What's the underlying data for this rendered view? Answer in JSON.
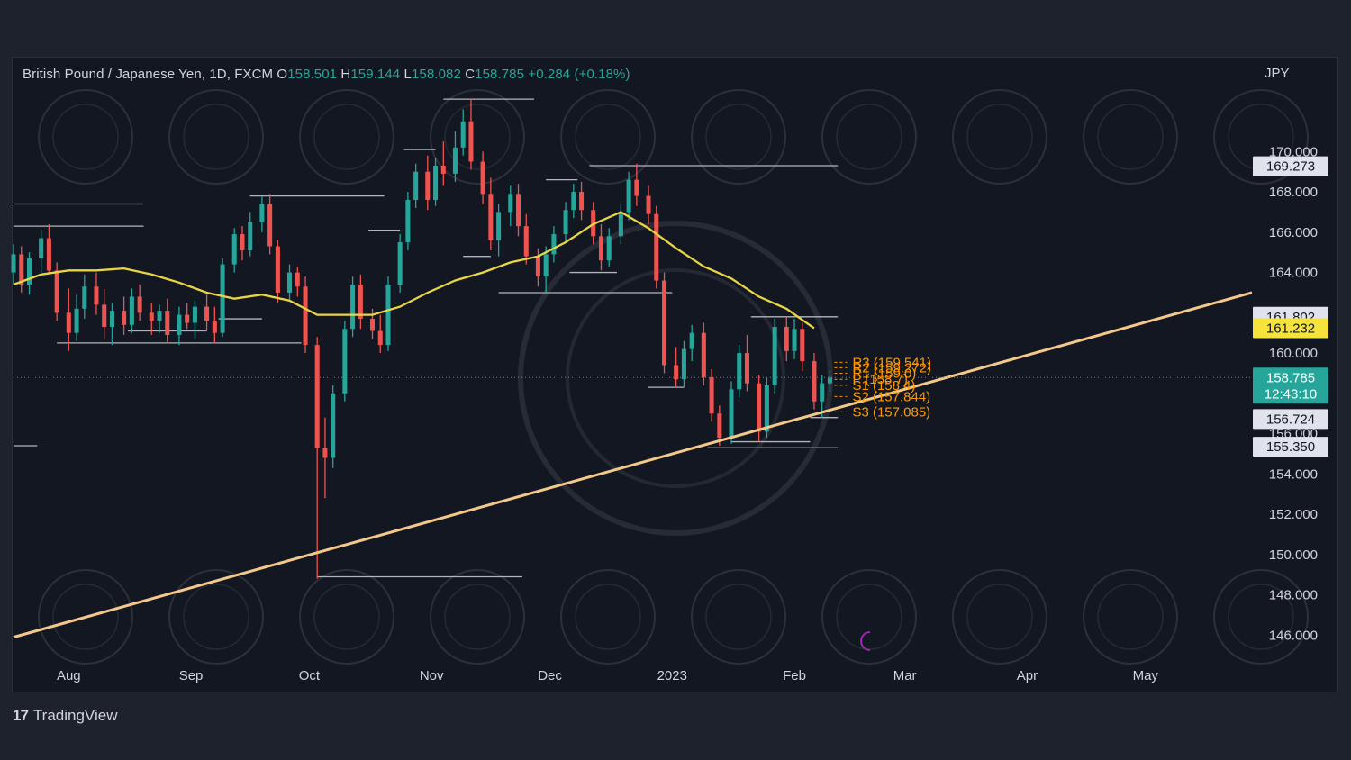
{
  "header": {
    "symbol": "British Pound / Japanese Yen, 1D, FXCM",
    "o_label": "O",
    "o_value": "158.501",
    "h_label": "H",
    "h_value": "159.144",
    "l_label": "L",
    "l_value": "158.082",
    "c_label": "C",
    "c_value": "158.785",
    "change": "+0.284 (+0.18%)"
  },
  "currency": "JPY",
  "brand": {
    "logo": "17",
    "name": "TradingView"
  },
  "colors": {
    "background": "#131722",
    "up": "#26a69a",
    "down": "#ef5350",
    "ma_line": "#e8d545",
    "trendline": "#f3c88a",
    "pivot_text": "#ff9800",
    "level_lines": "#b2b5be",
    "axis_text": "#d1d4dc"
  },
  "chart_data": {
    "type": "candlestick",
    "y_axis": {
      "ticks": [
        "146.000",
        "148.000",
        "150.000",
        "152.000",
        "154.000",
        "156.000",
        "158.000",
        "160.000",
        "162.000",
        "164.000",
        "166.000",
        "168.000",
        "170.000"
      ],
      "ylim": [
        144.9,
        173.5
      ]
    },
    "x_axis": {
      "ticks": [
        "Aug",
        "Sep",
        "Oct",
        "Nov",
        "Dec",
        "2023",
        "Feb",
        "Mar",
        "Apr",
        "May"
      ],
      "tick_dates": [
        "2022-08-01",
        "2022-09-01",
        "2022-10-01",
        "2022-11-01",
        "2022-12-01",
        "2023-01-01",
        "2023-02-01",
        "2023-03-01",
        "2023-04-01",
        "2023-05-01"
      ],
      "xlim": [
        "2022-07-18",
        "2023-05-28"
      ]
    },
    "price_labels": [
      {
        "text": "169.273",
        "value": 169.273,
        "style": "gray"
      },
      {
        "text": "161.802",
        "value": 161.802,
        "style": "gray"
      },
      {
        "text": "161.232",
        "value": 161.232,
        "style": "yellow"
      },
      {
        "text": "158.785",
        "value": 158.785,
        "style": "green",
        "sub": "12:43:10"
      },
      {
        "text": "156.724",
        "value": 156.724,
        "style": "gray"
      },
      {
        "text": "155.350",
        "value": 155.35,
        "style": "gray"
      }
    ],
    "last_price": 158.785,
    "moving_average": [
      [
        "2022-07-18",
        163.4
      ],
      [
        "2022-07-25",
        163.9
      ],
      [
        "2022-08-01",
        164.1
      ],
      [
        "2022-08-08",
        164.1
      ],
      [
        "2022-08-15",
        164.2
      ],
      [
        "2022-08-22",
        163.9
      ],
      [
        "2022-08-29",
        163.5
      ],
      [
        "2022-09-05",
        163.0
      ],
      [
        "2022-09-12",
        162.7
      ],
      [
        "2022-09-19",
        162.9
      ],
      [
        "2022-09-26",
        162.6
      ],
      [
        "2022-10-03",
        161.9
      ],
      [
        "2022-10-10",
        161.9
      ],
      [
        "2022-10-17",
        161.9
      ],
      [
        "2022-10-24",
        162.3
      ],
      [
        "2022-10-31",
        163.0
      ],
      [
        "2022-11-07",
        163.6
      ],
      [
        "2022-11-14",
        164.0
      ],
      [
        "2022-11-21",
        164.5
      ],
      [
        "2022-11-28",
        164.8
      ],
      [
        "2022-12-05",
        165.5
      ],
      [
        "2022-12-12",
        166.4
      ],
      [
        "2022-12-19",
        167.0
      ],
      [
        "2022-12-26",
        166.2
      ],
      [
        "2023-01-02",
        165.2
      ],
      [
        "2023-01-09",
        164.3
      ],
      [
        "2023-01-16",
        163.7
      ],
      [
        "2023-01-23",
        162.8
      ],
      [
        "2023-01-30",
        162.2
      ],
      [
        "2023-02-06",
        161.232
      ]
    ],
    "candles": [
      {
        "date": "2022-07-18",
        "o": 164.0,
        "h": 165.4,
        "l": 163.4,
        "c": 164.9
      },
      {
        "date": "2022-07-20",
        "o": 164.9,
        "h": 165.3,
        "l": 163.0,
        "c": 163.4
      },
      {
        "date": "2022-07-22",
        "o": 163.4,
        "h": 165.0,
        "l": 162.9,
        "c": 164.7
      },
      {
        "date": "2022-07-25",
        "o": 164.7,
        "h": 166.1,
        "l": 164.0,
        "c": 165.7
      },
      {
        "date": "2022-07-27",
        "o": 165.7,
        "h": 166.4,
        "l": 163.9,
        "c": 164.1
      },
      {
        "date": "2022-07-29",
        "o": 164.1,
        "h": 164.5,
        "l": 161.6,
        "c": 162.0
      },
      {
        "date": "2022-08-01",
        "o": 162.0,
        "h": 163.2,
        "l": 160.1,
        "c": 161.0
      },
      {
        "date": "2022-08-03",
        "o": 161.0,
        "h": 162.9,
        "l": 160.6,
        "c": 162.2
      },
      {
        "date": "2022-08-05",
        "o": 162.2,
        "h": 163.9,
        "l": 161.7,
        "c": 163.3
      },
      {
        "date": "2022-08-08",
        "o": 163.3,
        "h": 164.0,
        "l": 161.9,
        "c": 162.4
      },
      {
        "date": "2022-08-10",
        "o": 162.4,
        "h": 163.2,
        "l": 160.7,
        "c": 161.3
      },
      {
        "date": "2022-08-12",
        "o": 161.3,
        "h": 162.5,
        "l": 160.4,
        "c": 162.1
      },
      {
        "date": "2022-08-15",
        "o": 162.1,
        "h": 162.8,
        "l": 160.9,
        "c": 161.4
      },
      {
        "date": "2022-08-17",
        "o": 161.4,
        "h": 163.2,
        "l": 161.0,
        "c": 162.8
      },
      {
        "date": "2022-08-19",
        "o": 162.8,
        "h": 163.4,
        "l": 161.6,
        "c": 162.0
      },
      {
        "date": "2022-08-22",
        "o": 162.0,
        "h": 162.5,
        "l": 160.9,
        "c": 161.6
      },
      {
        "date": "2022-08-24",
        "o": 161.6,
        "h": 162.4,
        "l": 161.0,
        "c": 162.1
      },
      {
        "date": "2022-08-26",
        "o": 162.1,
        "h": 162.7,
        "l": 160.5,
        "c": 160.9
      },
      {
        "date": "2022-08-29",
        "o": 160.9,
        "h": 162.3,
        "l": 160.4,
        "c": 161.9
      },
      {
        "date": "2022-08-31",
        "o": 161.9,
        "h": 162.5,
        "l": 161.2,
        "c": 161.5
      },
      {
        "date": "2022-09-02",
        "o": 161.5,
        "h": 162.6,
        "l": 160.7,
        "c": 162.3
      },
      {
        "date": "2022-09-05",
        "o": 162.3,
        "h": 162.9,
        "l": 161.1,
        "c": 161.6
      },
      {
        "date": "2022-09-07",
        "o": 161.6,
        "h": 162.3,
        "l": 160.5,
        "c": 161.0
      },
      {
        "date": "2022-09-09",
        "o": 161.0,
        "h": 164.7,
        "l": 160.8,
        "c": 164.4
      },
      {
        "date": "2022-09-12",
        "o": 164.4,
        "h": 166.2,
        "l": 164.0,
        "c": 165.9
      },
      {
        "date": "2022-09-14",
        "o": 165.9,
        "h": 166.3,
        "l": 164.6,
        "c": 165.1
      },
      {
        "date": "2022-09-16",
        "o": 165.1,
        "h": 167.0,
        "l": 164.8,
        "c": 166.5
      },
      {
        "date": "2022-09-19",
        "o": 166.5,
        "h": 167.8,
        "l": 166.0,
        "c": 167.4
      },
      {
        "date": "2022-09-21",
        "o": 167.4,
        "h": 167.9,
        "l": 164.9,
        "c": 165.3
      },
      {
        "date": "2022-09-23",
        "o": 165.3,
        "h": 165.6,
        "l": 162.5,
        "c": 163.0
      },
      {
        "date": "2022-09-26",
        "o": 163.0,
        "h": 164.4,
        "l": 162.6,
        "c": 164.0
      },
      {
        "date": "2022-09-28",
        "o": 164.0,
        "h": 164.3,
        "l": 162.8,
        "c": 163.3
      },
      {
        "date": "2022-09-30",
        "o": 163.3,
        "h": 163.8,
        "l": 160.0,
        "c": 160.4
      },
      {
        "date": "2022-10-03",
        "o": 160.4,
        "h": 160.8,
        "l": 148.8,
        "c": 155.3
      },
      {
        "date": "2022-10-05",
        "o": 155.3,
        "h": 156.8,
        "l": 152.8,
        "c": 154.8
      },
      {
        "date": "2022-10-07",
        "o": 154.8,
        "h": 158.4,
        "l": 154.3,
        "c": 158.0
      },
      {
        "date": "2022-10-10",
        "o": 158.0,
        "h": 161.6,
        "l": 157.6,
        "c": 161.2
      },
      {
        "date": "2022-10-12",
        "o": 161.2,
        "h": 163.8,
        "l": 160.8,
        "c": 163.4
      },
      {
        "date": "2022-10-14",
        "o": 163.4,
        "h": 163.9,
        "l": 161.2,
        "c": 161.7
      },
      {
        "date": "2022-10-17",
        "o": 161.7,
        "h": 162.2,
        "l": 160.7,
        "c": 161.1
      },
      {
        "date": "2022-10-19",
        "o": 161.1,
        "h": 161.9,
        "l": 160.0,
        "c": 160.4
      },
      {
        "date": "2022-10-21",
        "o": 160.4,
        "h": 163.8,
        "l": 160.1,
        "c": 163.4
      },
      {
        "date": "2022-10-24",
        "o": 163.4,
        "h": 165.9,
        "l": 163.0,
        "c": 165.5
      },
      {
        "date": "2022-10-26",
        "o": 165.5,
        "h": 168.0,
        "l": 165.1,
        "c": 167.6
      },
      {
        "date": "2022-10-28",
        "o": 167.6,
        "h": 169.4,
        "l": 167.2,
        "c": 169.0
      },
      {
        "date": "2022-10-31",
        "o": 169.0,
        "h": 169.8,
        "l": 167.1,
        "c": 167.6
      },
      {
        "date": "2022-11-02",
        "o": 167.6,
        "h": 169.7,
        "l": 167.3,
        "c": 169.3
      },
      {
        "date": "2022-11-04",
        "o": 169.3,
        "h": 170.5,
        "l": 168.3,
        "c": 168.9
      },
      {
        "date": "2022-11-07",
        "o": 168.9,
        "h": 171.0,
        "l": 168.5,
        "c": 170.2
      },
      {
        "date": "2022-11-09",
        "o": 170.2,
        "h": 172.1,
        "l": 169.8,
        "c": 171.5
      },
      {
        "date": "2022-11-11",
        "o": 171.5,
        "h": 172.6,
        "l": 169.1,
        "c": 169.5
      },
      {
        "date": "2022-11-14",
        "o": 169.5,
        "h": 170.0,
        "l": 167.4,
        "c": 167.9
      },
      {
        "date": "2022-11-16",
        "o": 167.9,
        "h": 168.7,
        "l": 165.1,
        "c": 165.6
      },
      {
        "date": "2022-11-18",
        "o": 165.6,
        "h": 167.4,
        "l": 164.8,
        "c": 167.0
      },
      {
        "date": "2022-11-21",
        "o": 167.0,
        "h": 168.3,
        "l": 166.3,
        "c": 167.9
      },
      {
        "date": "2022-11-23",
        "o": 167.9,
        "h": 168.4,
        "l": 165.8,
        "c": 166.3
      },
      {
        "date": "2022-11-25",
        "o": 166.3,
        "h": 166.9,
        "l": 164.4,
        "c": 164.8
      },
      {
        "date": "2022-11-28",
        "o": 164.8,
        "h": 165.2,
        "l": 163.3,
        "c": 163.8
      },
      {
        "date": "2022-11-30",
        "o": 163.8,
        "h": 165.3,
        "l": 163.0,
        "c": 164.9
      },
      {
        "date": "2022-12-02",
        "o": 164.9,
        "h": 166.3,
        "l": 164.5,
        "c": 165.9
      },
      {
        "date": "2022-12-05",
        "o": 165.9,
        "h": 167.5,
        "l": 165.5,
        "c": 167.1
      },
      {
        "date": "2022-12-07",
        "o": 167.1,
        "h": 168.4,
        "l": 166.7,
        "c": 168.0
      },
      {
        "date": "2022-12-09",
        "o": 168.0,
        "h": 168.5,
        "l": 166.6,
        "c": 167.1
      },
      {
        "date": "2022-12-12",
        "o": 167.1,
        "h": 167.5,
        "l": 165.4,
        "c": 165.8
      },
      {
        "date": "2022-12-14",
        "o": 165.8,
        "h": 166.4,
        "l": 164.1,
        "c": 164.6
      },
      {
        "date": "2022-12-16",
        "o": 164.6,
        "h": 166.2,
        "l": 164.3,
        "c": 165.8
      },
      {
        "date": "2022-12-19",
        "o": 165.8,
        "h": 167.4,
        "l": 165.4,
        "c": 167.0
      },
      {
        "date": "2022-12-21",
        "o": 167.0,
        "h": 169.0,
        "l": 166.6,
        "c": 168.6
      },
      {
        "date": "2022-12-23",
        "o": 168.6,
        "h": 169.4,
        "l": 167.3,
        "c": 167.8
      },
      {
        "date": "2022-12-26",
        "o": 167.8,
        "h": 168.3,
        "l": 166.4,
        "c": 166.9
      },
      {
        "date": "2022-12-28",
        "o": 166.9,
        "h": 167.3,
        "l": 163.2,
        "c": 163.6
      },
      {
        "date": "2022-12-30",
        "o": 163.6,
        "h": 164.0,
        "l": 159.0,
        "c": 159.4
      },
      {
        "date": "2023-01-02",
        "o": 159.4,
        "h": 160.3,
        "l": 158.3,
        "c": 158.7
      },
      {
        "date": "2023-01-04",
        "o": 158.7,
        "h": 160.6,
        "l": 158.3,
        "c": 160.2
      },
      {
        "date": "2023-01-06",
        "o": 160.2,
        "h": 161.4,
        "l": 159.6,
        "c": 161.0
      },
      {
        "date": "2023-01-09",
        "o": 161.0,
        "h": 161.5,
        "l": 158.4,
        "c": 158.8
      },
      {
        "date": "2023-01-11",
        "o": 158.8,
        "h": 159.2,
        "l": 156.6,
        "c": 157.0
      },
      {
        "date": "2023-01-13",
        "o": 157.0,
        "h": 157.4,
        "l": 155.4,
        "c": 155.8
      },
      {
        "date": "2023-01-16",
        "o": 155.8,
        "h": 158.6,
        "l": 155.5,
        "c": 158.2
      },
      {
        "date": "2023-01-18",
        "o": 158.2,
        "h": 160.4,
        "l": 157.8,
        "c": 160.0
      },
      {
        "date": "2023-01-20",
        "o": 160.0,
        "h": 160.9,
        "l": 158.1,
        "c": 158.5
      },
      {
        "date": "2023-01-23",
        "o": 158.5,
        "h": 158.9,
        "l": 155.6,
        "c": 156.1
      },
      {
        "date": "2023-01-25",
        "o": 156.1,
        "h": 158.8,
        "l": 155.8,
        "c": 158.4
      },
      {
        "date": "2023-01-27",
        "o": 158.4,
        "h": 161.7,
        "l": 158.0,
        "c": 161.3
      },
      {
        "date": "2023-01-30",
        "o": 161.3,
        "h": 161.8,
        "l": 159.6,
        "c": 160.1
      },
      {
        "date": "2023-02-01",
        "o": 160.1,
        "h": 161.7,
        "l": 159.7,
        "c": 161.2
      },
      {
        "date": "2023-02-03",
        "o": 161.2,
        "h": 161.5,
        "l": 159.1,
        "c": 159.6
      },
      {
        "date": "2023-02-06",
        "o": 159.6,
        "h": 160.0,
        "l": 157.2,
        "c": 157.6
      },
      {
        "date": "2023-02-08",
        "o": 157.6,
        "h": 158.9,
        "l": 156.8,
        "c": 158.5
      },
      {
        "date": "2023-02-10",
        "o": 158.5,
        "h": 159.144,
        "l": 158.082,
        "c": 158.785
      }
    ],
    "trendline": [
      [
        "2022-07-18",
        145.9
      ],
      [
        "2023-05-28",
        163.0
      ]
    ],
    "horizontal_levels": [
      {
        "from": "2022-07-18",
        "to": "2022-08-20",
        "y": 167.4
      },
      {
        "from": "2022-07-18",
        "to": "2022-08-20",
        "y": 166.3
      },
      {
        "from": "2022-07-18",
        "to": "2022-07-24",
        "y": 155.4
      },
      {
        "from": "2022-07-29",
        "to": "2022-09-29",
        "y": 160.5
      },
      {
        "from": "2022-08-16",
        "to": "2022-09-05",
        "y": 161.1
      },
      {
        "from": "2022-09-08",
        "to": "2022-09-19",
        "y": 161.7
      },
      {
        "from": "2022-09-16",
        "to": "2022-10-20",
        "y": 167.8
      },
      {
        "from": "2022-10-03",
        "to": "2022-11-24",
        "y": 148.9
      },
      {
        "from": "2022-10-16",
        "to": "2022-10-24",
        "y": 166.1
      },
      {
        "from": "2022-10-25",
        "to": "2022-11-02",
        "y": 170.1
      },
      {
        "from": "2022-11-04",
        "to": "2022-11-27",
        "y": 172.6
      },
      {
        "from": "2022-11-09",
        "to": "2022-11-16",
        "y": 164.8
      },
      {
        "from": "2022-11-18",
        "to": "2023-01-01",
        "y": 163.0
      },
      {
        "from": "2022-11-30",
        "to": "2022-12-08",
        "y": 168.6
      },
      {
        "from": "2022-12-06",
        "to": "2022-12-18",
        "y": 164.0
      },
      {
        "from": "2022-12-11",
        "to": "2023-02-12",
        "y": 169.3
      },
      {
        "from": "2022-12-26",
        "to": "2023-01-04",
        "y": 158.3
      },
      {
        "from": "2023-01-10",
        "to": "2023-02-12",
        "y": 155.3
      },
      {
        "from": "2023-01-16",
        "to": "2023-02-05",
        "y": 155.6
      },
      {
        "from": "2023-01-21",
        "to": "2023-02-12",
        "y": 161.8
      },
      {
        "from": "2023-02-05",
        "to": "2023-02-12",
        "y": 156.8
      }
    ],
    "pivot_labels": [
      {
        "text": "R3 (159.541)",
        "value": 159.541
      },
      {
        "text": "R2 (159.272)",
        "value": 159.272
      },
      {
        "text": "R1 (159.0)",
        "value": 159.0
      },
      {
        "text": "P (158.7)",
        "value": 158.7
      },
      {
        "text": "S1 (158.4)",
        "value": 158.4
      },
      {
        "text": "S2 (157.844)",
        "value": 157.844
      },
      {
        "text": "S3 (157.085)",
        "value": 157.085
      }
    ]
  }
}
